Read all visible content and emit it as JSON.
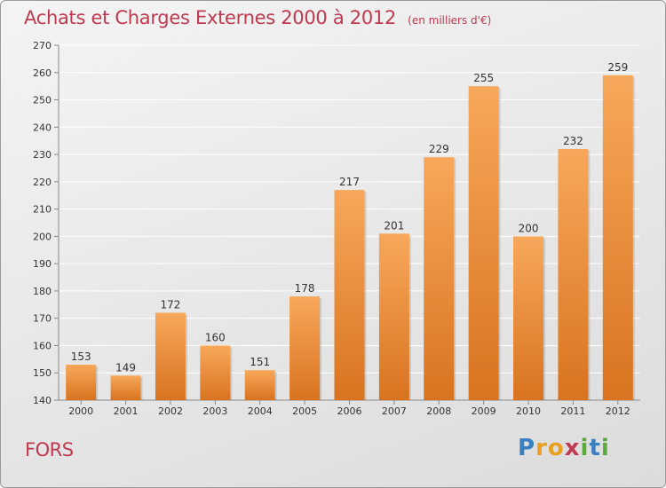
{
  "header": {
    "title": "Achats et Charges Externes 2000 à 2012",
    "subtitle": "(en milliers d'€)"
  },
  "footer": {
    "town": "FORS",
    "brand": {
      "text": "Proxiti",
      "letters": [
        {
          "char": "P",
          "color": "#3a7fc1"
        },
        {
          "char": "r",
          "color": "#e8a01e"
        },
        {
          "char": "o",
          "color": "#e8a01e"
        },
        {
          "char": "x",
          "color": "#c0394f"
        },
        {
          "char": "i",
          "color": "#5aaa3c"
        },
        {
          "char": "t",
          "color": "#3a7fc1"
        },
        {
          "char": "i",
          "color": "#5aaa3c"
        }
      ]
    }
  },
  "colors": {
    "bar_top": "#f7a85a",
    "bar_bottom": "#d9731f",
    "title": "#c0394f",
    "grid": "#ffffff",
    "text": "#333333"
  },
  "chart_data": {
    "type": "bar",
    "categories": [
      "2000",
      "2001",
      "2002",
      "2003",
      "2004",
      "2005",
      "2006",
      "2007",
      "2008",
      "2009",
      "2010",
      "2011",
      "2012"
    ],
    "values": [
      153,
      149,
      172,
      160,
      151,
      178,
      217,
      201,
      229,
      255,
      200,
      232,
      259
    ],
    "title": "Achats et Charges Externes 2000 à 2012",
    "subtitle": "(en milliers d'€)",
    "xlabel": "",
    "ylabel": "",
    "ylim": [
      140,
      270
    ],
    "yticks": [
      140,
      150,
      160,
      170,
      180,
      190,
      200,
      210,
      220,
      230,
      240,
      250,
      260,
      270
    ],
    "grid": true,
    "data_labels": true
  }
}
